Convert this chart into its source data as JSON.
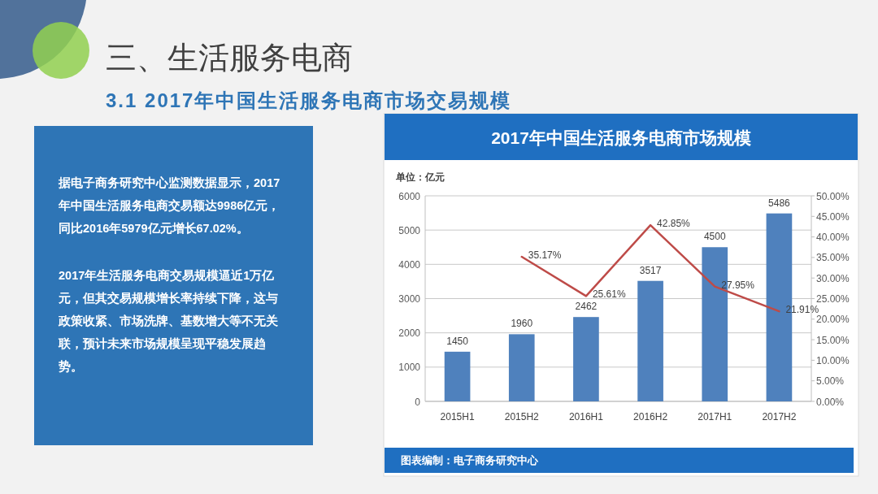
{
  "chart_data": [
    {
      "type": "other",
      "title": "三、生活服务电商",
      "subtitle": "3.1 2017年中国生活服务电商市场交易规模",
      "annotations": [
        "据电子商务研究中心监测数据显示，2017年中国生活服务电商交易额达9986亿元，同比2016年5979亿元增长67.02%。",
        "2017年生活服务电商交易规模逼近1万亿元，但其交易规模增长率持续下降，这与政策收紧、市场洗牌、基数增大等不无关联，预计未来市场规模呈现平稳发展趋势。"
      ]
    },
    {
      "type": "bar",
      "title": "2017年中国生活服务电商市场规模",
      "ylabel": "单位：亿元",
      "categories": [
        "2015H1",
        "2015H2",
        "2016H1",
        "2016H2",
        "2017H1",
        "2017H2"
      ],
      "series": [
        {
          "type": "bar",
          "color": "#4f81bd",
          "values": [
            1450,
            1960,
            2462,
            3517,
            4500,
            5486
          ],
          "value_labels": [
            "1450",
            "1960",
            "2462",
            "3517",
            "4500",
            "5486"
          ]
        },
        {
          "type": "line",
          "axis": "y2",
          "color": "#be4b48",
          "values": [
            null,
            35.17,
            25.61,
            42.85,
            27.95,
            21.91
          ],
          "value_labels": [
            null,
            "35.17%",
            "25.61%",
            "42.85%",
            "27.95%",
            "21.91%"
          ]
        }
      ],
      "ylim": [
        0,
        6000
      ],
      "yticks": [
        0,
        1000,
        2000,
        3000,
        4000,
        5000,
        6000
      ],
      "y2lim": [
        0,
        50
      ],
      "y2ticks": [
        {
          "value": 0,
          "label": "0.00%"
        },
        {
          "value": 5,
          "label": "5.00%"
        },
        {
          "value": 10,
          "label": "10.00%"
        },
        {
          "value": 15,
          "label": "15.00%"
        },
        {
          "value": 20,
          "label": "20.00%"
        },
        {
          "value": 25,
          "label": "25.00%"
        },
        {
          "value": 30,
          "label": "30.00%"
        },
        {
          "value": 35,
          "label": "35.00%"
        },
        {
          "value": 40,
          "label": "40.00%"
        },
        {
          "value": 45,
          "label": "45.00%"
        },
        {
          "value": 50,
          "label": "50.00%"
        }
      ],
      "grid": "y",
      "annotations": [
        "图表编制：电子商务研究中心"
      ]
    }
  ]
}
